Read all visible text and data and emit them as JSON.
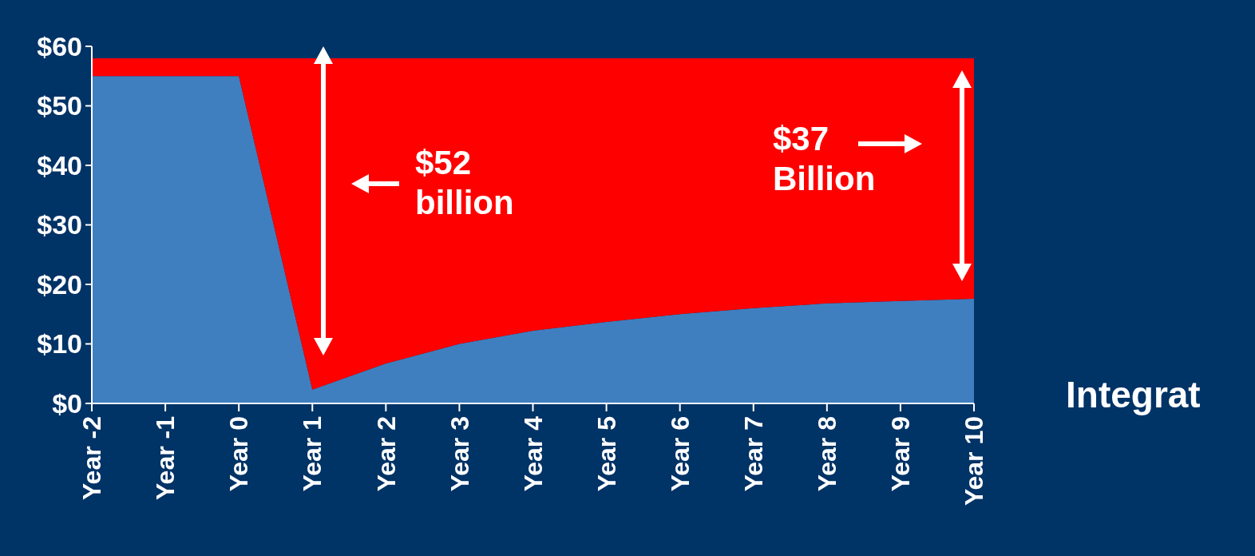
{
  "chart_data": {
    "type": "area",
    "categories": [
      "Year -2",
      "Year -1",
      "Year 0",
      "Year 1",
      "Year 2",
      "Year 3",
      "Year 4",
      "Year 5",
      "Year 6",
      "Year 7",
      "Year 8",
      "Year 9",
      "Year 10"
    ],
    "series": [
      {
        "color": "#3f7fbf",
        "values": [
          55,
          55,
          55,
          2.3,
          6.7,
          10,
          12.2,
          13.7,
          15,
          16,
          16.8,
          17.2,
          17.6
        ]
      },
      {
        "color": "#ff0000",
        "values": [
          3,
          3,
          3,
          55.7,
          51.3,
          48,
          45.8,
          44.3,
          43,
          42,
          41.2,
          40.8,
          40.4
        ]
      }
    ],
    "ylim": [
      0,
      60
    ],
    "yticks": [
      {
        "value": 0,
        "label": "$0"
      },
      {
        "value": 10,
        "label": "$10"
      },
      {
        "value": 20,
        "label": "$20"
      },
      {
        "value": 30,
        "label": "$30"
      },
      {
        "value": 40,
        "label": "$40"
      },
      {
        "value": 50,
        "label": "$50"
      },
      {
        "value": 60,
        "label": "$60"
      }
    ],
    "grid": false,
    "stacked": true,
    "annotations": [
      "$52 billion",
      "$37 Billion",
      "Integrat"
    ]
  }
}
